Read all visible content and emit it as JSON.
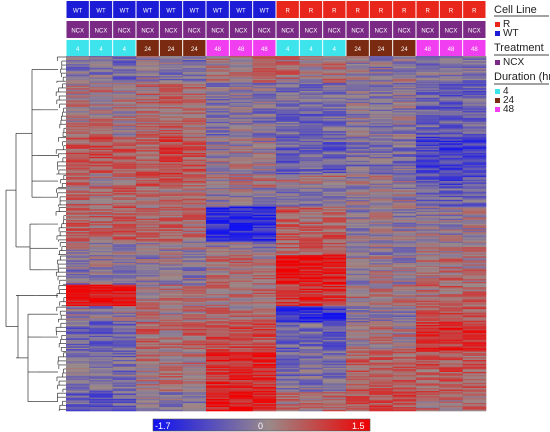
{
  "chart_data": {
    "type": "heatmap",
    "columns": {
      "cell_line": [
        "WT",
        "WT",
        "WT",
        "WT",
        "WT",
        "WT",
        "WT",
        "WT",
        "WT",
        "R",
        "R",
        "R",
        "R",
        "R",
        "R",
        "R",
        "R",
        "R"
      ],
      "treatment": [
        "NCX",
        "NCX",
        "NCX",
        "NCX",
        "NCX",
        "NCX",
        "NCX",
        "NCX",
        "NCX",
        "NCX",
        "NCX",
        "NCX",
        "NCX",
        "NCX",
        "NCX",
        "NCX",
        "NCX",
        "NCX"
      ],
      "duration": [
        "4",
        "4",
        "4",
        "24",
        "24",
        "24",
        "48",
        "48",
        "48",
        "4",
        "4",
        "4",
        "24",
        "24",
        "24",
        "48",
        "48",
        "48"
      ]
    },
    "annotation_colors": {
      "cell_line": {
        "R": "#e8261c",
        "WT": "#1c1cd6"
      },
      "treatment": {
        "NCX": "#7a2a84"
      },
      "duration": {
        "4": "#3de4ec",
        "24": "#7a2a10",
        "48": "#f03ef0"
      }
    },
    "row_blocks": [
      {
        "rows": 20,
        "values": [
          -0.4,
          -0.3,
          -0.5,
          -0.2,
          -0.3,
          -0.4,
          0.2,
          0.1,
          0.3,
          0.3,
          0.1,
          0.2,
          -0.1,
          -0.2,
          -0.1,
          -0.3,
          -0.2,
          -0.4
        ]
      },
      {
        "rows": 40,
        "values": [
          0.1,
          0.2,
          0.1,
          0.3,
          0.4,
          0.3,
          -0.3,
          -0.2,
          -0.3,
          -0.4,
          -0.5,
          -0.4,
          -0.2,
          -0.3,
          -0.2,
          -0.6,
          -0.7,
          -0.6
        ]
      },
      {
        "rows": 28,
        "values": [
          0.6,
          0.7,
          0.6,
          0.5,
          0.7,
          0.6,
          -0.1,
          0.0,
          -0.1,
          -0.6,
          -0.5,
          -0.6,
          -0.4,
          -0.3,
          -0.4,
          -1.0,
          -1.1,
          -1.0
        ]
      },
      {
        "rows": 10,
        "values": [
          0.3,
          0.2,
          0.3,
          0.5,
          0.6,
          0.5,
          0.0,
          0.1,
          0.2,
          0.2,
          0.1,
          0.2,
          -0.1,
          0.0,
          -0.1,
          -0.8,
          -0.9,
          -0.8
        ]
      },
      {
        "rows": 14,
        "values": [
          0.4,
          0.3,
          0.5,
          0.2,
          0.3,
          0.2,
          -0.2,
          -0.1,
          -0.2,
          -0.3,
          -0.2,
          -0.3,
          -0.1,
          -0.2,
          -0.1,
          -0.5,
          -0.6,
          -0.5
        ]
      },
      {
        "rows": 26,
        "values": [
          0.5,
          0.4,
          0.6,
          0.3,
          0.4,
          0.3,
          -1.3,
          -1.4,
          -1.3,
          0.5,
          0.4,
          0.5,
          -0.2,
          -0.1,
          -0.2,
          -0.1,
          -0.2,
          -0.1
        ]
      },
      {
        "rows": 10,
        "values": [
          -0.1,
          -0.2,
          -0.1,
          0.0,
          -0.1,
          0.0,
          -0.2,
          -0.1,
          -0.2,
          0.4,
          0.5,
          0.4,
          -0.3,
          -0.2,
          -0.3,
          0.1,
          0.0,
          0.1
        ]
      },
      {
        "rows": 22,
        "values": [
          -0.3,
          -0.2,
          -0.3,
          -0.2,
          -0.1,
          -0.2,
          0.2,
          0.3,
          0.2,
          1.2,
          1.3,
          1.2,
          -0.1,
          0.0,
          -0.1,
          0.2,
          0.3,
          0.2
        ]
      },
      {
        "rows": 16,
        "values": [
          1.3,
          1.4,
          1.3,
          0.1,
          0.2,
          0.1,
          0.3,
          0.2,
          0.3,
          0.9,
          1.0,
          0.9,
          0.2,
          0.1,
          0.2,
          0.3,
          0.4,
          0.3
        ]
      },
      {
        "rows": 12,
        "values": [
          -0.2,
          -0.3,
          -0.2,
          0.2,
          0.1,
          0.2,
          0.3,
          0.2,
          0.3,
          -1.2,
          -1.3,
          -1.2,
          -0.3,
          -0.2,
          -0.3,
          0.6,
          0.7,
          0.6
        ]
      },
      {
        "rows": 22,
        "values": [
          -0.5,
          -0.6,
          -0.5,
          0.4,
          0.3,
          0.4,
          0.7,
          0.8,
          0.7,
          -0.6,
          -0.5,
          -0.6,
          0.1,
          0.2,
          0.1,
          0.9,
          1.0,
          0.9
        ]
      },
      {
        "rows": 30,
        "values": [
          -0.4,
          -0.5,
          -0.4,
          0.2,
          0.3,
          0.2,
          1.0,
          1.1,
          1.0,
          -0.4,
          -0.3,
          -0.4,
          0.5,
          0.6,
          0.5,
          0.5,
          0.6,
          0.5
        ]
      },
      {
        "rows": 14,
        "values": [
          -0.6,
          -0.7,
          -0.6,
          -0.3,
          -0.2,
          -0.3,
          1.2,
          1.3,
          1.2,
          0.3,
          0.2,
          0.3,
          0.6,
          0.7,
          0.6,
          0.3,
          0.2,
          0.3
        ]
      }
    ],
    "colorbar": {
      "min": -1.7,
      "max": 1.5,
      "mid": 0,
      "colors": [
        "#1010f0",
        "#9a8a8a",
        "#f00000"
      ],
      "tick_labels": [
        "-1.7",
        "0",
        "1.5"
      ]
    }
  },
  "legend": {
    "cell_line_title": "Cell Line",
    "cell_line_items": [
      {
        "label": "R",
        "color": "#e8261c"
      },
      {
        "label": "WT",
        "color": "#1c1cd6"
      }
    ],
    "treatment_title": "Treatment",
    "treatment_items": [
      {
        "label": "NCX",
        "color": "#7a2a84"
      }
    ],
    "duration_title": "Duration (hrs)",
    "duration_items": [
      {
        "label": "4",
        "color": "#3de4ec"
      },
      {
        "label": "24",
        "color": "#7a2a10"
      },
      {
        "label": "48",
        "color": "#f03ef0"
      }
    ]
  }
}
